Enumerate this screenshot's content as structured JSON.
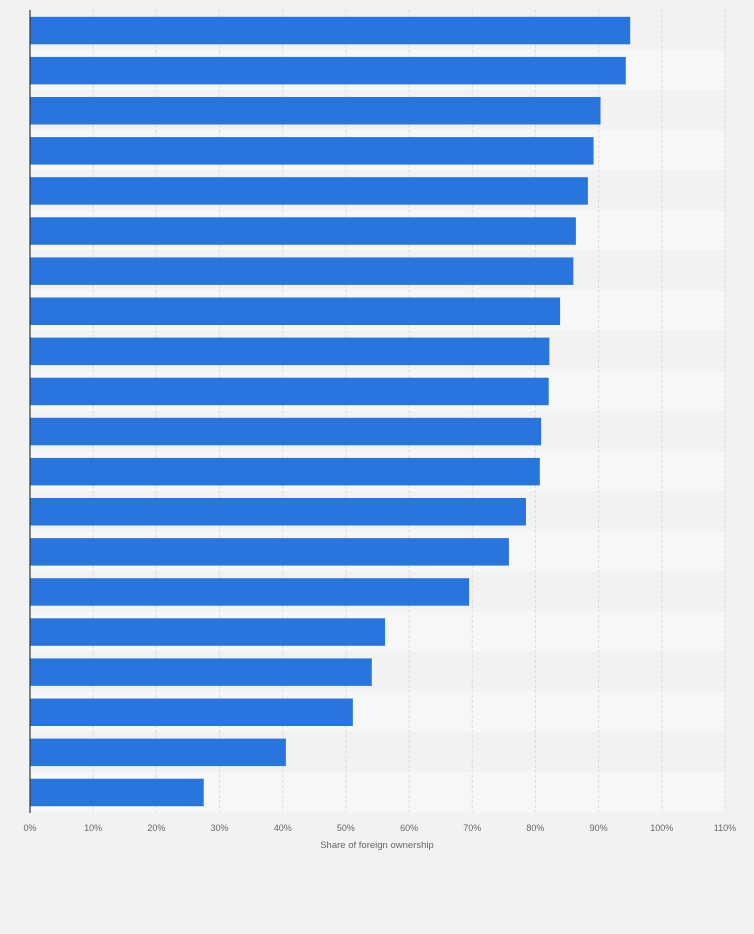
{
  "colors": {
    "bar": "#2876dd",
    "page_background": "#f2f2f2",
    "band_light": "#f7f7f7",
    "band_dark": "#f2f2f2",
    "grid": "#dcdcdc",
    "axis_line": "#333333",
    "tick_text": "#666666"
  },
  "chart_data": {
    "type": "bar",
    "orientation": "horizontal",
    "xlabel": "Share of foreign ownership",
    "xlim": [
      0,
      110
    ],
    "x_ticks": [
      "0%",
      "10%",
      "20%",
      "30%",
      "40%",
      "50%",
      "60%",
      "70%",
      "80%",
      "90%",
      "100%",
      "110%"
    ],
    "grid": true,
    "category_labels_visible": false,
    "values": [
      95,
      94.3,
      90.3,
      89.2,
      88.3,
      86.4,
      86,
      83.9,
      82.2,
      82.1,
      80.9,
      80.7,
      78.5,
      75.8,
      69.5,
      56.2,
      54.1,
      51.1,
      40.5,
      27.5
    ]
  }
}
